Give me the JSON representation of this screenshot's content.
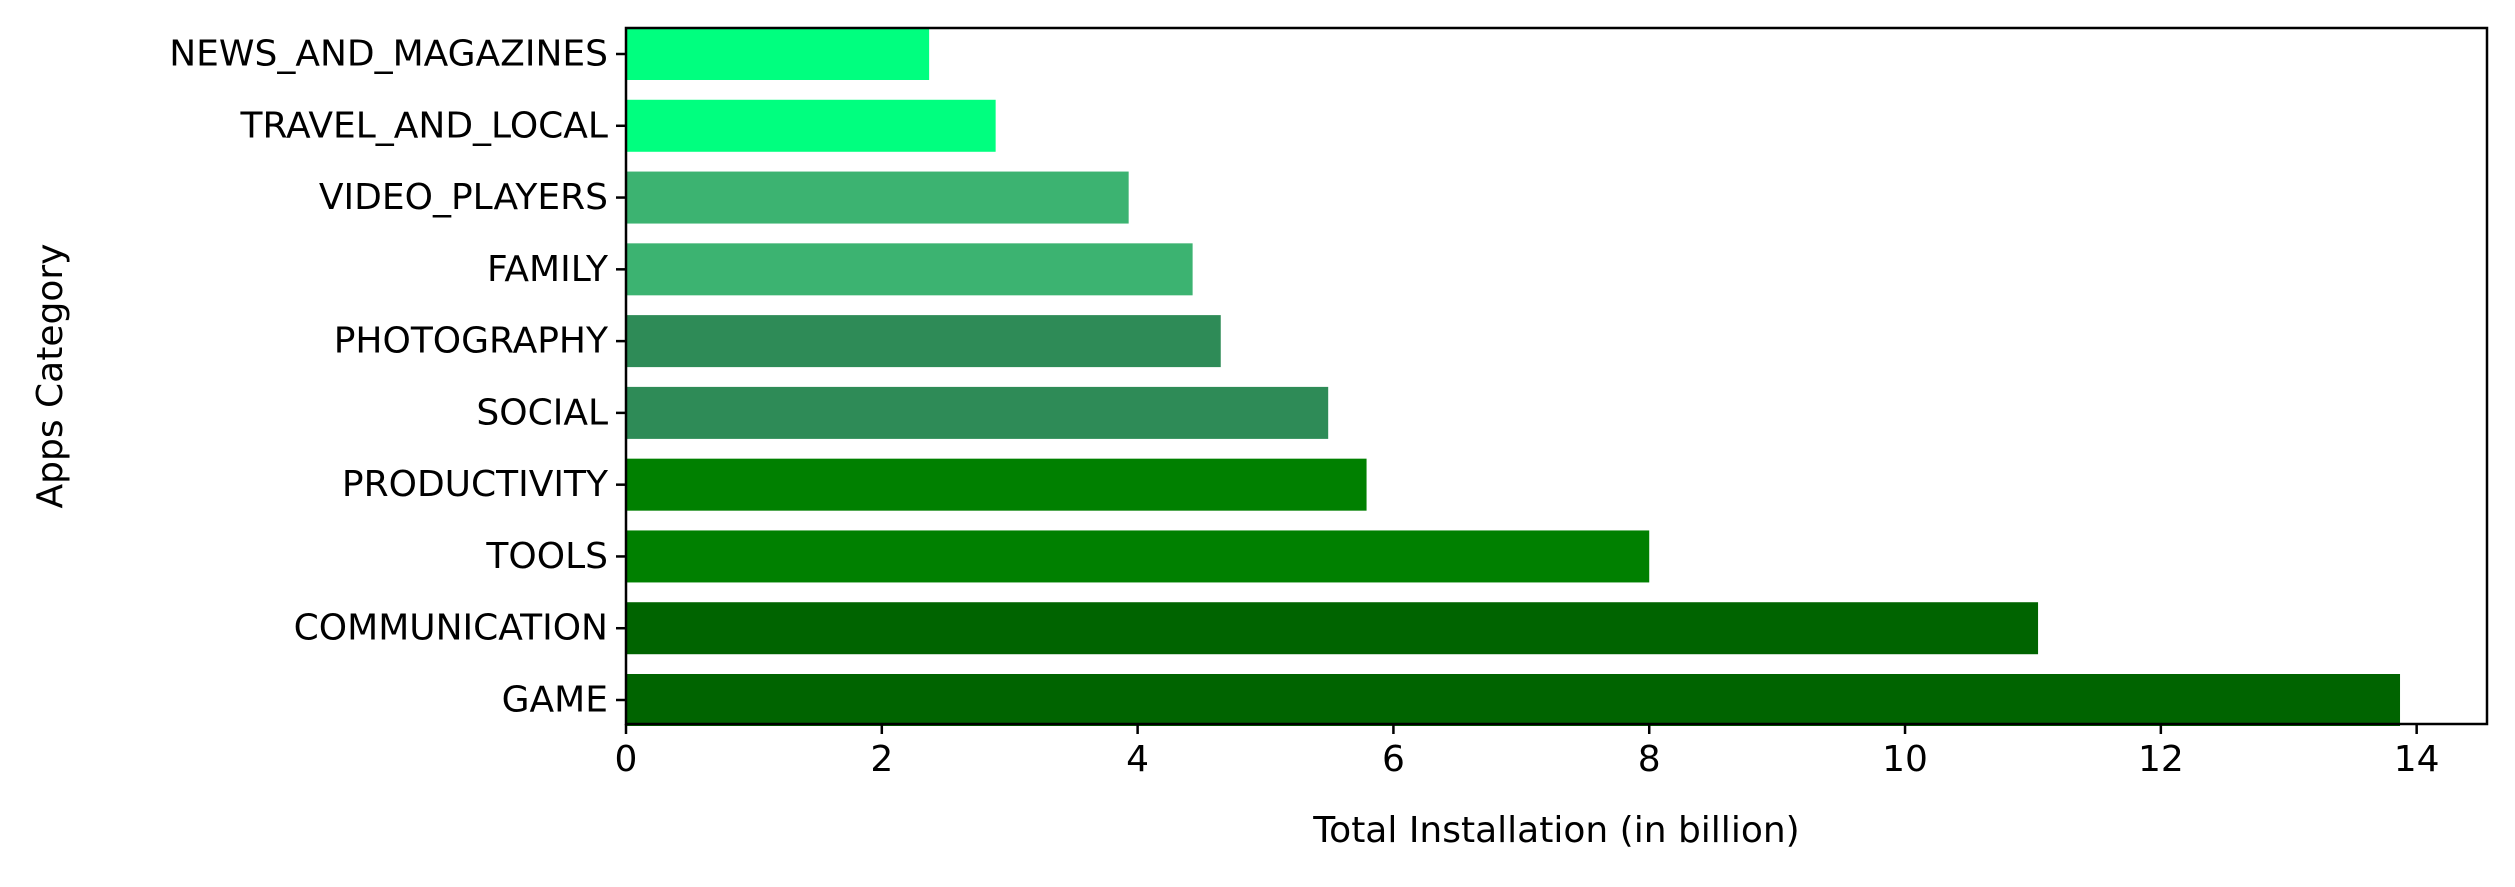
{
  "chart_data": {
    "type": "bar",
    "orientation": "horizontal",
    "title": "",
    "xlabel": "Total Installation (in billion)",
    "ylabel": "Apps Category",
    "xlim": [
      0,
      14.55
    ],
    "xticks": [
      0,
      2,
      4,
      6,
      8,
      10,
      12,
      14
    ],
    "grid": false,
    "categories": [
      "GAME",
      "COMMUNICATION",
      "TOOLS",
      "PRODUCTIVITY",
      "SOCIAL",
      "PHOTOGRAPHY",
      "FAMILY",
      "VIDEO_PLAYERS",
      "TRAVEL_AND_LOCAL",
      "NEWS_AND_MAGAZINES"
    ],
    "values": [
      13.87,
      11.04,
      8.0,
      5.79,
      5.49,
      4.65,
      4.43,
      3.93,
      2.89,
      2.37
    ],
    "colors": [
      "#006400",
      "#006400",
      "#008000",
      "#008000",
      "#2e8b57",
      "#2e8b57",
      "#3cb371",
      "#3cb371",
      "#00ff7f",
      "#00ff7f"
    ]
  }
}
